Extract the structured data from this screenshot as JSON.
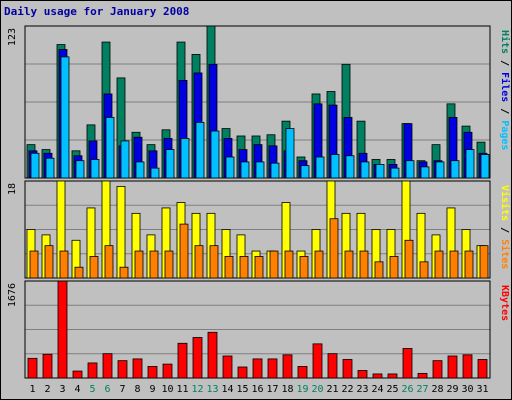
{
  "chart_data": {
    "type": "bar",
    "title": "Daily usage for January 2008",
    "categories": [
      "1",
      "2",
      "3",
      "4",
      "5",
      "6",
      "7",
      "8",
      "9",
      "10",
      "11",
      "12",
      "13",
      "14",
      "15",
      "16",
      "17",
      "18",
      "19",
      "20",
      "21",
      "22",
      "23",
      "24",
      "25",
      "26",
      "27",
      "28",
      "29",
      "30",
      "31"
    ],
    "weekend_days": [
      "5",
      "6",
      "12",
      "13",
      "19",
      "20",
      "26",
      "27"
    ],
    "colors": {
      "hits": "#008060",
      "files": "#0000e0",
      "pages": "#00c0ff",
      "visits": "#ffff00",
      "sites": "#ff8000",
      "kbytes": "#ff0000",
      "weekend_label": "#008060",
      "weekday_label": "#000000"
    },
    "panels": [
      {
        "id": "hits-files-pages",
        "ymax": 123,
        "ymax_label": "123",
        "legend": [
          {
            "text": "Hits",
            "color": "#008060"
          },
          {
            "text": "Files",
            "color": "#0000e0"
          },
          {
            "text": "Pages",
            "color": "#00c0ff"
          }
        ],
        "series": [
          {
            "name": "Hits",
            "values": [
              27,
              23,
              108,
              22,
              43,
              110,
              81,
              37,
              27,
              39,
              110,
              100,
              123,
              40,
              34,
              34,
              35,
              46,
              17,
              68,
              70,
              92,
              46,
              15,
              15,
              44,
              14,
              27,
              60,
              42,
              29
            ]
          },
          {
            "name": "Files",
            "values": [
              22,
              20,
              104,
              18,
              30,
              68,
              26,
              33,
              22,
              32,
              79,
              85,
              92,
              32,
              23,
              27,
              26,
              22,
              14,
              60,
              59,
              49,
              20,
              11,
              11,
              44,
              13,
              14,
              49,
              37,
              20
            ]
          },
          {
            "name": "Pages",
            "values": [
              20,
              16,
              98,
              14,
              15,
              49,
              30,
              13,
              8,
              23,
              32,
              45,
              38,
              17,
              13,
              13,
              12,
              40,
              10,
              17,
              19,
              18,
              13,
              11,
              8,
              14,
              9,
              13,
              14,
              23,
              19
            ]
          }
        ]
      },
      {
        "id": "visits-sites",
        "ymax": 18,
        "ymax_label": "18",
        "legend": [
          {
            "text": "Visits",
            "color": "#ffff00"
          },
          {
            "text": "Sites",
            "color": "#ff8000"
          }
        ],
        "series": [
          {
            "name": "Visits",
            "values": [
              9,
              8,
              18,
              7,
              13,
              18,
              17,
              12,
              8,
              13,
              14,
              12,
              12,
              9,
              8,
              5,
              5,
              14,
              5,
              9,
              18,
              12,
              12,
              9,
              9,
              18,
              12,
              8,
              13,
              9,
              6
            ]
          },
          {
            "name": "Sites",
            "values": [
              5,
              6,
              5,
              2,
              4,
              6,
              2,
              5,
              5,
              5,
              10,
              6,
              6,
              4,
              4,
              4,
              5,
              5,
              4,
              5,
              11,
              5,
              5,
              3,
              4,
              7,
              3,
              5,
              5,
              5,
              6
            ]
          }
        ]
      },
      {
        "id": "kbytes",
        "ymax": 1676,
        "ymax_label": "1676",
        "legend": [
          {
            "text": "KBytes",
            "color": "#ff0000"
          }
        ],
        "series": [
          {
            "name": "KBytes",
            "values": [
              340,
              410,
              1676,
              120,
              260,
              420,
              300,
              330,
              200,
              240,
              600,
              700,
              790,
              380,
              190,
              330,
              330,
              400,
              200,
              590,
              420,
              320,
              130,
              70,
              70,
              510,
              80,
              300,
              380,
              400,
              320
            ]
          }
        ]
      }
    ]
  }
}
